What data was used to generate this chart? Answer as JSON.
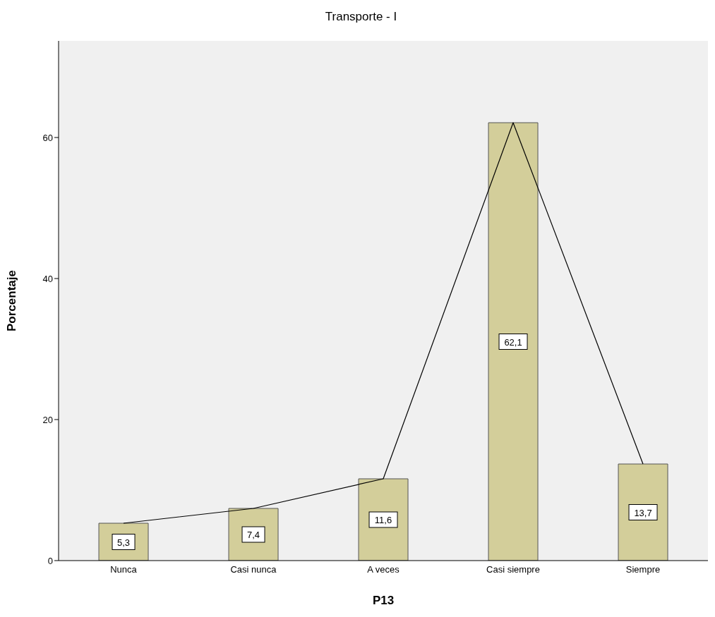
{
  "chart_data": {
    "type": "bar",
    "title": "Transporte  - I",
    "xlabel": "P13",
    "ylabel": "Porcentaje",
    "categories": [
      "Nunca",
      "Casi nunca",
      "A veces",
      "Casi siempre",
      "Siempre"
    ],
    "series": [
      {
        "color": "#d3ce9a",
        "values": [
          5.3,
          7.4,
          11.6,
          62.1,
          13.7
        ],
        "value_labels": [
          "5,3",
          "7,4",
          "11,6",
          "62,1",
          "13,7"
        ]
      },
      {
        "type": "line",
        "color": "#000000",
        "values": [
          5.3,
          7.4,
          11.6,
          62.1,
          13.7
        ]
      }
    ],
    "ylim": [
      0,
      73.7
    ],
    "yticks": [
      0,
      20,
      40,
      60
    ],
    "grid": false,
    "legend": false
  }
}
